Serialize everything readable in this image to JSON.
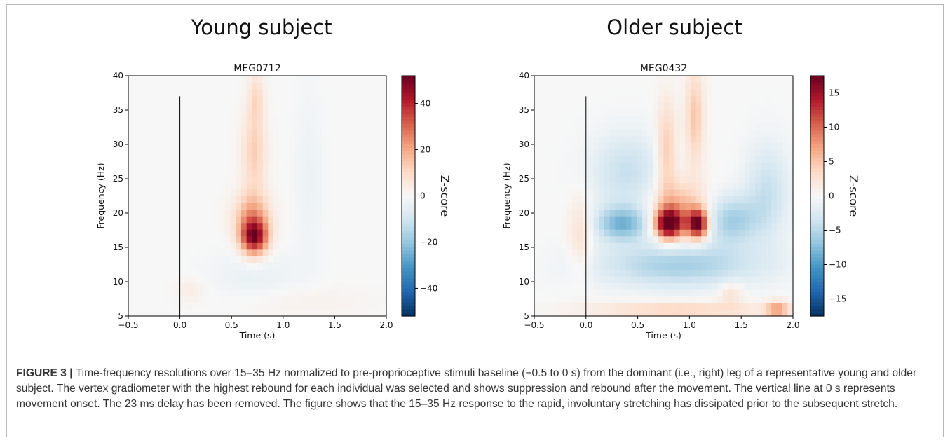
{
  "panels": [
    {
      "heading": "Young subject"
    },
    {
      "heading": "Older subject"
    }
  ],
  "colors": {
    "negative": "#0b2f6b",
    "positive": "#67001f",
    "neutral": "#f7f7f7",
    "onset_line": "#000000"
  },
  "chart_data": [
    {
      "type": "heatmap",
      "title": "MEG0712",
      "xlabel": "Time (s)",
      "ylabel": "Frequency (Hz)",
      "xlim": [
        -0.5,
        2.0
      ],
      "ylim": [
        5,
        40
      ],
      "x_ticks": [
        "−0.5",
        "0.0",
        "0.5",
        "1.0",
        "1.5",
        "2.0"
      ],
      "x_tick_values": [
        -0.5,
        0.0,
        0.5,
        1.0,
        1.5,
        2.0
      ],
      "y_ticks": [
        "5",
        "10",
        "15",
        "20",
        "25",
        "30",
        "35",
        "40"
      ],
      "y_tick_values": [
        5,
        10,
        15,
        20,
        25,
        30,
        35,
        40
      ],
      "colorbar": {
        "label": "Z-score",
        "vmin": -52,
        "vmax": 52,
        "ticks": [
          "−40",
          "−20",
          "0",
          "20",
          "40"
        ],
        "tick_values": [
          -40,
          -20,
          0,
          20,
          40
        ]
      },
      "onset_line": {
        "x": 0.0,
        "y_range": [
          5,
          37
        ]
      },
      "blobs": [
        {
          "t": 0.72,
          "f": 16.5,
          "st": 0.09,
          "sf": 1.8,
          "amp": 44
        },
        {
          "t": 0.7,
          "f": 19.5,
          "st": 0.12,
          "sf": 2.5,
          "amp": 20
        },
        {
          "t": 0.72,
          "f": 29,
          "st": 0.08,
          "sf": 4.5,
          "amp": 13
        },
        {
          "t": 0.74,
          "f": 37,
          "st": 0.05,
          "sf": 2.5,
          "amp": 9
        },
        {
          "t": 0.72,
          "f": 11,
          "st": 0.3,
          "sf": 2.5,
          "amp": -4
        },
        {
          "t": 0.1,
          "f": 8.8,
          "st": 0.1,
          "sf": 1.2,
          "amp": 4
        },
        {
          "t": 1.2,
          "f": 7.2,
          "st": 0.45,
          "sf": 1.5,
          "amp": 2.5
        },
        {
          "t": 1.25,
          "f": 25,
          "st": 0.1,
          "sf": 9,
          "amp": -3
        }
      ]
    },
    {
      "type": "heatmap",
      "title": "MEG0432",
      "xlabel": "Time (s)",
      "ylabel": "Frequency (Hz)",
      "xlim": [
        -0.5,
        2.0
      ],
      "ylim": [
        5,
        40
      ],
      "x_ticks": [
        "−0.5",
        "0.0",
        "0.5",
        "1.0",
        "1.5",
        "2.0"
      ],
      "x_tick_values": [
        -0.5,
        0.0,
        0.5,
        1.0,
        1.5,
        2.0
      ],
      "y_ticks": [
        "5",
        "10",
        "15",
        "20",
        "25",
        "30",
        "35",
        "40"
      ],
      "y_tick_values": [
        5,
        10,
        15,
        20,
        25,
        30,
        35,
        40
      ],
      "colorbar": {
        "label": "Z-score",
        "vmin": -17.5,
        "vmax": 17.5,
        "ticks": [
          "−15",
          "−10",
          "−5",
          "0",
          "5",
          "10",
          "15"
        ],
        "tick_values": [
          -15,
          -10,
          -5,
          0,
          5,
          10,
          15
        ]
      },
      "onset_line": {
        "x": 0.0,
        "y_range": [
          5,
          37
        ]
      },
      "blobs": [
        {
          "t": 0.8,
          "f": 18.5,
          "st": 0.09,
          "sf": 1.5,
          "amp": 18
        },
        {
          "t": 1.08,
          "f": 18.5,
          "st": 0.07,
          "sf": 1.5,
          "amp": 17
        },
        {
          "t": 0.9,
          "f": 20.5,
          "st": 0.18,
          "sf": 3.0,
          "amp": 6
        },
        {
          "t": 0.78,
          "f": 29,
          "st": 0.07,
          "sf": 5,
          "amp": 5
        },
        {
          "t": 1.05,
          "f": 34,
          "st": 0.06,
          "sf": 5,
          "amp": 5
        },
        {
          "t": 0.35,
          "f": 18.5,
          "st": 0.18,
          "sf": 1.8,
          "amp": -8
        },
        {
          "t": 1.4,
          "f": 19,
          "st": 0.18,
          "sf": 2.5,
          "amp": -6
        },
        {
          "t": 0.9,
          "f": 12.5,
          "st": 0.55,
          "sf": 2.3,
          "amp": -6
        },
        {
          "t": 0.4,
          "f": 26,
          "st": 0.25,
          "sf": 4.0,
          "amp": -4
        },
        {
          "t": 1.75,
          "f": 23,
          "st": 0.15,
          "sf": 5.0,
          "amp": -4
        },
        {
          "t": 0.9,
          "f": 6.0,
          "st": 0.6,
          "sf": 0.8,
          "amp": 4
        },
        {
          "t": 1.85,
          "f": 6.0,
          "st": 0.08,
          "sf": 0.8,
          "amp": 7
        },
        {
          "t": -0.05,
          "f": 17,
          "st": 0.08,
          "sf": 4,
          "amp": 3
        },
        {
          "t": 1.4,
          "f": 8.5,
          "st": 0.08,
          "sf": 1.2,
          "amp": 3
        }
      ]
    }
  ],
  "caption": {
    "label": "FIGURE 3 |",
    "text": "Time-frequency resolutions over 15–35 Hz normalized to pre-proprioceptive stimuli baseline (−0.5 to 0 s) from the dominant (i.e., right) leg of a representative young and older subject. The vertex gradiometer with the highest rebound for each individual was selected and shows suppression and rebound after the movement. The vertical line at 0 s represents movement onset. The 23 ms delay has been removed. The figure shows that the 15–35 Hz response to the rapid, involuntary stretching has dissipated prior to the subsequent stretch."
  }
}
